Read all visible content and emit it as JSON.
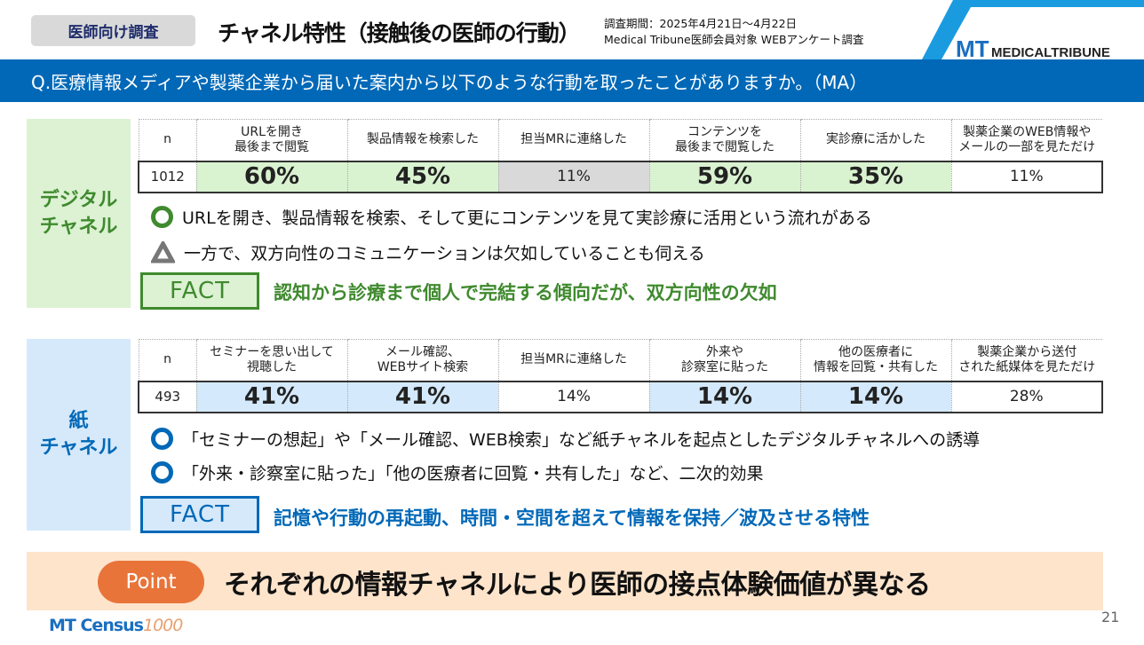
{
  "header": {
    "badge": "医師向け調査",
    "title": "チャネル特性（接触後の医師の行動）",
    "period": "調査期間：2025年4月21日～4月22日",
    "target": "Medical Tribune医師会員対象 WEBアンケート調査",
    "logo": "MEDICALTRIBUNE"
  },
  "question": "Q.医療情報メディアや製薬企業から届いた案内から以下のような行動を取ったことがありますか。（MA）",
  "digital": {
    "label1": "デジタル",
    "label2": "チャネル",
    "headers": [
      "n",
      "URLを開き\n最後まで閲覧",
      "製品情報を検索した",
      "担当MRに連絡した",
      "コンテンツを\n最後まで閲覧した",
      "実診療に活かした",
      "製薬企業のWEB情報や\nメールの一部を見ただけ"
    ],
    "values": [
      "1012",
      "60%",
      "45%",
      "11%",
      "59%",
      "35%",
      "11%"
    ],
    "bullets": [
      "URLを開き、製品情報を検索、そして更にコンテンツを見て実診療に活用という流れがある",
      "一方で、双方向性のコミュニケーションは欠如していることも伺える"
    ],
    "fact": "FACT",
    "fact_text": "認知から診療まで個人で完結する傾向だが、双方向性の欠如",
    "color": "#3f8a2e"
  },
  "paper": {
    "label1": "紙",
    "label2": "チャネル",
    "headers": [
      "n",
      "セミナーを思い出して\n視聴した",
      "メール確認、\nWEBサイト検索",
      "担当MRに連絡した",
      "外来や\n診察室に貼った",
      "他の医療者に\n情報を回覧・共有した",
      "製薬企業から送付\nされた紙媒体を見ただけ"
    ],
    "values": [
      "493",
      "41%",
      "41%",
      "14%",
      "14%",
      "14%",
      "28%"
    ],
    "bullets": [
      "「セミナーの想起」や「メール確認、WEB検索」など紙チャネルを起点としたデジタルチャネルへの誘導",
      "「外来・診察室に貼った」「他の医療者に回覧・共有した」など、二次的効果"
    ],
    "fact": "FACT",
    "fact_text": "記憶や行動の再起動、時間・空間を超えて情報を保持／波及させる特性",
    "color": "#0068b7"
  },
  "point": {
    "label": "Point",
    "text": "それぞれの情報チャネルにより医師の接点体験価値が異なる"
  },
  "footer": {
    "logo": "MT Census 1000",
    "page": "21"
  }
}
